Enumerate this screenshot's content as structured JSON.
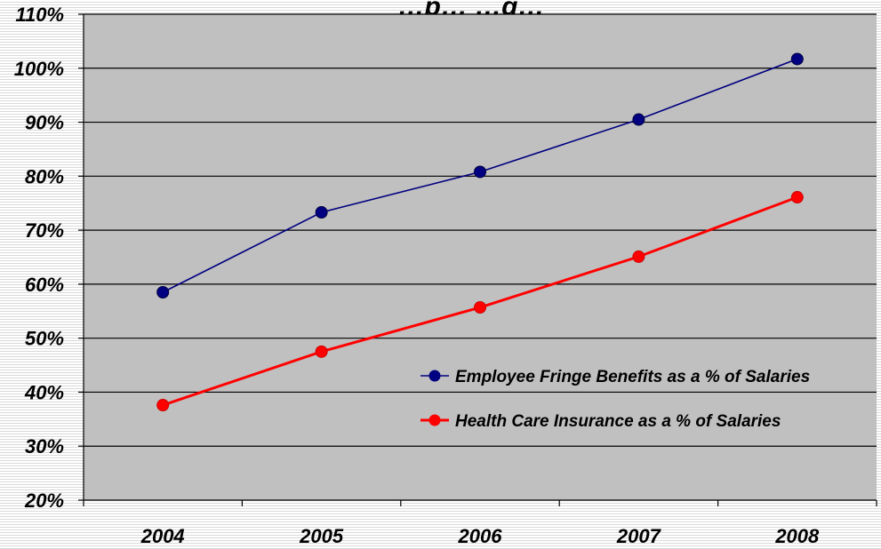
{
  "chart_data": {
    "type": "line",
    "title": "…p…   …g…",
    "categories": [
      "2004",
      "2005",
      "2006",
      "2007",
      "2008"
    ],
    "ylim": [
      20,
      110
    ],
    "y_tick_values": [
      20,
      30,
      40,
      50,
      60,
      70,
      80,
      90,
      100,
      110
    ],
    "y_tick_labels": [
      "20%",
      "30%",
      "40%",
      "50%",
      "60%",
      "70%",
      "80%",
      "90%",
      "100%",
      "110%"
    ],
    "grid": true,
    "legend_position": "inside-lower-right",
    "series": [
      {
        "name": "Employee Fringe Benefits as a % of Salaries",
        "values": [
          58.5,
          73.3,
          80.8,
          90.5,
          101.7
        ],
        "color": "#000080"
      },
      {
        "name": "Health Care Insurance as a % of Salaries",
        "values": [
          37.6,
          47.5,
          55.7,
          65.1,
          76.1
        ],
        "color": "#ff0000"
      }
    ],
    "plot_background": "#c0c0c0",
    "page_background": "#ffffff"
  }
}
